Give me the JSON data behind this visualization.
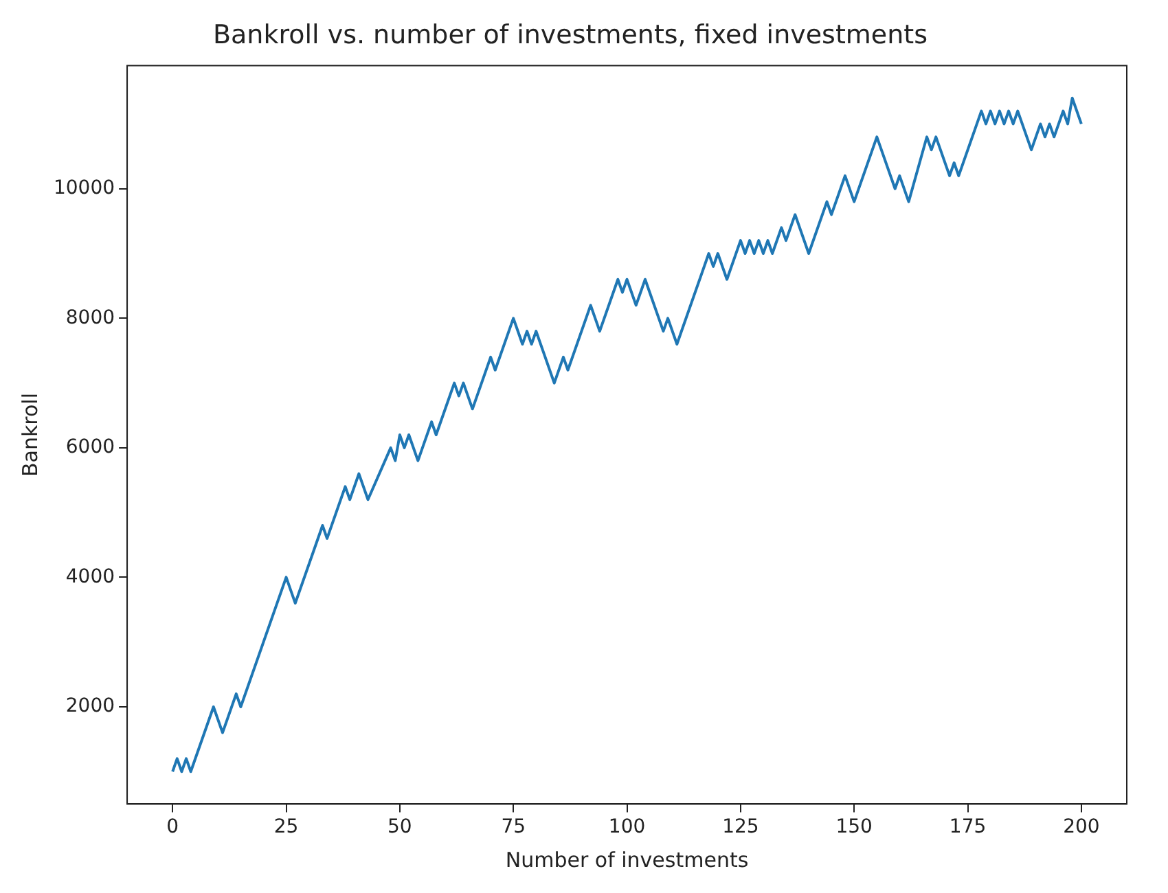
{
  "chart_data": {
    "type": "line",
    "title": "Bankroll vs. number of investments, fixed investments",
    "xlabel": "Number of investments",
    "ylabel": "Bankroll",
    "xlim": [
      -10,
      210
    ],
    "xticks": [
      0,
      25,
      50,
      75,
      100,
      125,
      150,
      175,
      200
    ],
    "ylim": [
      500,
      11900
    ],
    "yticks": [
      2000,
      4000,
      6000,
      8000,
      10000
    ],
    "grid": false,
    "legend": false,
    "marker": "none",
    "line_style": "solid",
    "series": [
      {
        "color": "#1f77b4",
        "x": [
          0,
          1,
          2,
          3,
          4,
          9,
          11,
          14,
          15,
          25,
          27,
          33,
          34,
          38,
          39,
          41,
          43,
          48,
          49,
          50,
          51,
          52,
          54,
          57,
          58,
          62,
          63,
          64,
          66,
          70,
          71,
          75,
          77,
          78,
          79,
          80,
          84,
          86,
          87,
          92,
          94,
          98,
          99,
          100,
          102,
          104,
          108,
          109,
          111,
          118,
          119,
          120,
          122,
          125,
          126,
          127,
          128,
          129,
          130,
          131,
          132,
          134,
          135,
          137,
          140,
          144,
          145,
          148,
          150,
          155,
          159,
          160,
          162,
          166,
          167,
          168,
          169,
          171,
          172,
          173,
          178,
          179,
          180,
          181,
          182,
          183,
          184,
          185,
          186,
          189,
          191,
          192,
          193,
          194,
          196,
          197,
          198,
          200
        ],
        "values": [
          1000,
          1200,
          1000,
          1200,
          1000,
          2000,
          1600,
          2200,
          2000,
          4000,
          3600,
          4800,
          4600,
          5400,
          5200,
          5600,
          5200,
          6000,
          5800,
          6200,
          6000,
          6200,
          5800,
          6400,
          6200,
          7000,
          6800,
          7000,
          6600,
          7400,
          7200,
          8000,
          7600,
          7800,
          7600,
          7800,
          7000,
          7400,
          7200,
          8200,
          7800,
          8600,
          8400,
          8600,
          8200,
          8600,
          7800,
          8000,
          7600,
          9000,
          8800,
          9000,
          8600,
          9200,
          9000,
          9200,
          9000,
          9200,
          9000,
          9200,
          9000,
          9400,
          9200,
          9600,
          9000,
          9800,
          9600,
          10200,
          9800,
          10800,
          10000,
          10200,
          9800,
          10800,
          10600,
          10800,
          10600,
          10200,
          10400,
          10200,
          11200,
          11000,
          11200,
          11000,
          11200,
          11000,
          11200,
          11000,
          11200,
          10600,
          11000,
          10800,
          11000,
          10800,
          11200,
          11000,
          11400,
          11000
        ]
      }
    ]
  }
}
